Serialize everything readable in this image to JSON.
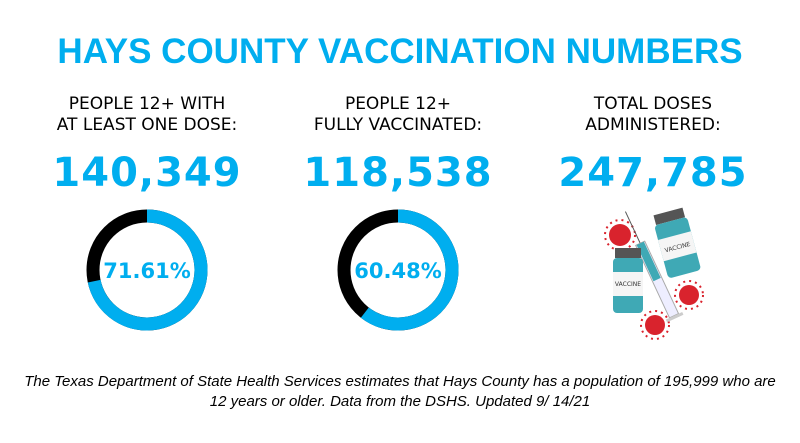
{
  "title": "HAYS COUNTY VACCINATION NUMBERS",
  "stats": [
    {
      "label": "PEOPLE  12+ WITH\nAT LEAST ONE DOSE:",
      "value": "140,349",
      "percent_label": "71.61%",
      "percent": 71.61
    },
    {
      "label": "PEOPLE 12+\nFULLY VACCINATED:",
      "value": "118,538",
      "percent_label": "60.48%",
      "percent": 60.48
    },
    {
      "label": "TOTAL DOSES\nADMINISTERED:",
      "value": "247,785"
    }
  ],
  "footnote": "The Texas Department of State Health Services estimates that Hays County has a population of 195,999 who are 12 years or older. Data from the DSHS. Updated 9/ 14/21",
  "illustration": {
    "vial_label": "VACCINE"
  },
  "colors": {
    "accent": "#00AEEF",
    "remainder": "#000000",
    "virus": "#D9232D"
  },
  "chart_data": [
    {
      "type": "pie",
      "style": "donut",
      "categories": [
        "With at least one dose",
        "Remaining"
      ],
      "values": [
        71.61,
        28.39
      ],
      "data_labels": [
        "71.61%"
      ]
    },
    {
      "type": "pie",
      "style": "donut",
      "categories": [
        "Fully vaccinated",
        "Remaining"
      ],
      "values": [
        60.48,
        39.52
      ],
      "data_labels": [
        "60.48%"
      ]
    }
  ]
}
